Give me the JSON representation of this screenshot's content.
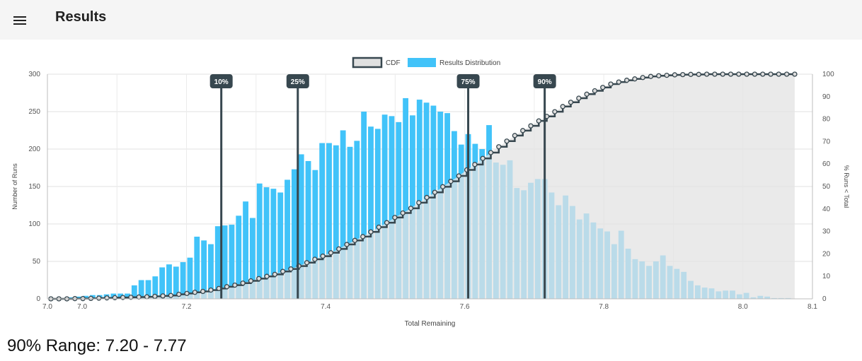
{
  "header": {
    "menu_icon": "hamburger-menu-icon",
    "title": "Results"
  },
  "legend": {
    "cdf_label": "CDF",
    "dist_label": "Results Distribution"
  },
  "colors": {
    "bars": "#41c3f9",
    "bars_shaded": "#3aa4d9",
    "cdf_line": "#37474f",
    "shade": "#e3e3e3",
    "grid": "#e0e0e0",
    "marker": "#37474f"
  },
  "chart_data": {
    "type": "bar",
    "xlabel": "Total Remaining",
    "ylabel": "Number of Runs",
    "y2label": "% Runs < Total",
    "xlim": [
      7.0,
      8.1
    ],
    "ylim": [
      0,
      300
    ],
    "y2lim": [
      0,
      100
    ],
    "x_ticks": [
      "7.0",
      "7.0",
      "7.2",
      "7.4",
      "7.6",
      "7.8",
      "8.0",
      "8.1"
    ],
    "y_ticks": [
      0,
      50,
      100,
      150,
      200,
      250,
      300
    ],
    "y2_ticks": [
      0,
      10,
      20,
      30,
      40,
      50,
      60,
      70,
      80,
      90,
      100
    ],
    "bar_start": 7.0,
    "bar_width": 0.01,
    "values": [
      0,
      0,
      1,
      2,
      3,
      4,
      5,
      5,
      6,
      7,
      7,
      7,
      18,
      25,
      25,
      30,
      42,
      46,
      43,
      49,
      55,
      83,
      78,
      73,
      97,
      98,
      99,
      111,
      130,
      108,
      154,
      149,
      147,
      142,
      159,
      173,
      193,
      184,
      172,
      208,
      208,
      205,
      225,
      203,
      211,
      250,
      230,
      227,
      246,
      244,
      236,
      268,
      245,
      266,
      262,
      258,
      250,
      248,
      224,
      206,
      220,
      207,
      200,
      232,
      182,
      179,
      185,
      148,
      145,
      155,
      160,
      160,
      142,
      125,
      138,
      124,
      106,
      114,
      102,
      94,
      90,
      73,
      91,
      67,
      53,
      50,
      44,
      50,
      58,
      44,
      40,
      36,
      24,
      18,
      15,
      14,
      10,
      11,
      11,
      6,
      8,
      2,
      4,
      3,
      1,
      1,
      1,
      0,
      0,
      0,
      0
    ],
    "cdf": [
      0,
      0,
      0,
      0.1,
      0.1,
      0.2,
      0.3,
      0.4,
      0.5,
      0.6,
      0.7,
      0.8,
      0.9,
      1.1,
      1.3,
      1.5,
      2.0,
      2.4,
      2.9,
      3.3,
      3.9,
      4.6,
      5.4,
      6.1,
      7.0,
      8.0,
      9.0,
      10.0,
      10.9,
      12.2,
      13.3,
      14.6,
      16.1,
      17.6,
      19.0,
      20.5,
      22.2,
      24.2,
      26.0,
      27.7,
      29.8,
      31.9,
      33.9,
      36.2,
      38.2,
      40.3,
      42.8,
      45.1,
      47.4,
      49.9,
      52.3,
      54.7,
      57.4,
      59.8,
      62.5,
      65.1,
      67.7,
      70.2,
      72.7,
      74.9,
      77.0,
      79.2,
      81.2,
      83.3,
      85.6,
      87.5,
      89.3,
      91.1,
      92.6,
      94.1,
      95.6,
      96.5,
      97.3,
      97.9,
      98.5,
      99.0,
      99.3,
      99.5,
      99.7,
      99.8,
      99.9,
      99.9,
      100,
      100,
      100,
      100,
      100,
      100,
      100,
      100,
      100,
      100,
      100,
      100
    ],
    "cdf_x_start": 7.005,
    "cdf_x_step": 0.0115,
    "percentile_markers": [
      {
        "label": "10%",
        "x": 7.25
      },
      {
        "label": "25%",
        "x": 7.36
      },
      {
        "label": "75%",
        "x": 7.605
      },
      {
        "label": "90%",
        "x": 7.715
      }
    ],
    "shaded_from_percentile": "75%",
    "grid": true,
    "legend_position": "top-center"
  },
  "summary": {
    "label": "90% Range:",
    "low": "7.20",
    "separator": "-",
    "high": "7.77"
  }
}
